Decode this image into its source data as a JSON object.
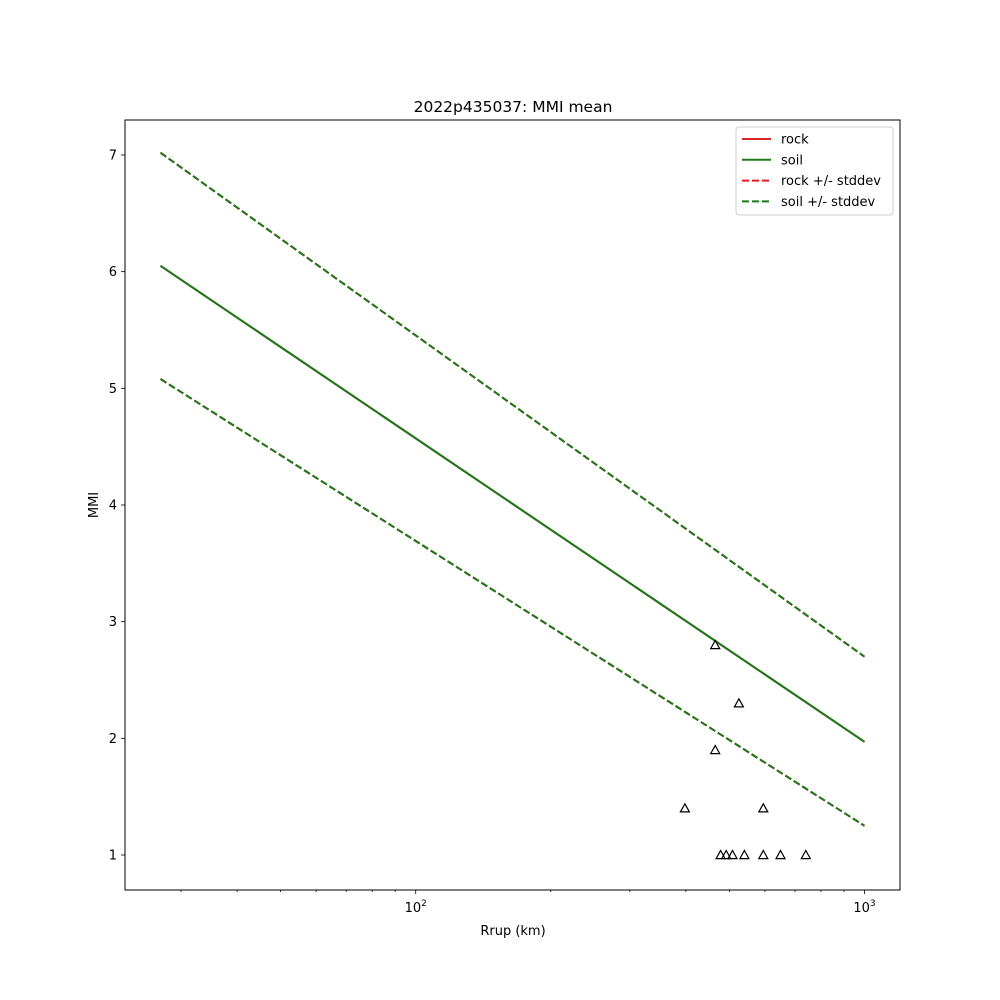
{
  "chart_data": {
    "type": "line",
    "title": "2022p435037: MMI mean",
    "xlabel": "Rrup (km)",
    "ylabel": "MMI",
    "x_scale": "log",
    "xlim": [
      22.5,
      1200
    ],
    "ylim": [
      0.7,
      7.3
    ],
    "x_major_ticks": [
      {
        "value": 100,
        "base": "10",
        "exp": "2"
      },
      {
        "value": 1000,
        "base": "10",
        "exp": "3"
      }
    ],
    "x_minor_ticks": [
      30,
      40,
      50,
      60,
      70,
      80,
      90,
      200,
      300,
      400,
      500,
      600,
      700,
      800,
      900
    ],
    "y_ticks": [
      1,
      2,
      3,
      4,
      5,
      6,
      7
    ],
    "y_tick_labels": [
      "1",
      "2",
      "3",
      "4",
      "5",
      "6",
      "7"
    ],
    "grid": false,
    "legend_position": "top-right",
    "series": [
      {
        "name": "rock",
        "style": "solid",
        "color": "#d62728",
        "x": [
          27,
          1000
        ],
        "y": [
          6.05,
          1.97
        ]
      },
      {
        "name": "soil",
        "style": "solid",
        "color": "#1a7a1a",
        "x": [
          27,
          1000
        ],
        "y": [
          6.05,
          1.97
        ]
      },
      {
        "name": "rock +/- stddev",
        "style": "dashed",
        "color": "#e41a1c",
        "upper": {
          "x": [
            27,
            1000
          ],
          "y": [
            7.02,
            2.7
          ]
        },
        "lower": {
          "x": [
            27,
            1000
          ],
          "y": [
            5.08,
            1.25
          ]
        }
      },
      {
        "name": "soil +/- stddev",
        "style": "dashed",
        "color": "#1a7a1a",
        "upper": {
          "x": [
            27,
            1000
          ],
          "y": [
            7.02,
            2.7
          ]
        },
        "lower": {
          "x": [
            27,
            1000
          ],
          "y": [
            5.08,
            1.25
          ]
        }
      }
    ],
    "draw_order": [
      "rock",
      "rock +/- stddev",
      "soil",
      "soil +/- stddev"
    ],
    "observations": {
      "marker": "triangle",
      "color": "#000000",
      "points": [
        {
          "x": 465,
          "y": 2.8
        },
        {
          "x": 525,
          "y": 2.3
        },
        {
          "x": 465,
          "y": 1.9
        },
        {
          "x": 398,
          "y": 1.4
        },
        {
          "x": 595,
          "y": 1.4
        },
        {
          "x": 478,
          "y": 1.0
        },
        {
          "x": 492,
          "y": 1.0
        },
        {
          "x": 508,
          "y": 1.0
        },
        {
          "x": 540,
          "y": 1.0
        },
        {
          "x": 595,
          "y": 1.0
        },
        {
          "x": 650,
          "y": 1.0
        },
        {
          "x": 740,
          "y": 1.0
        }
      ]
    }
  }
}
